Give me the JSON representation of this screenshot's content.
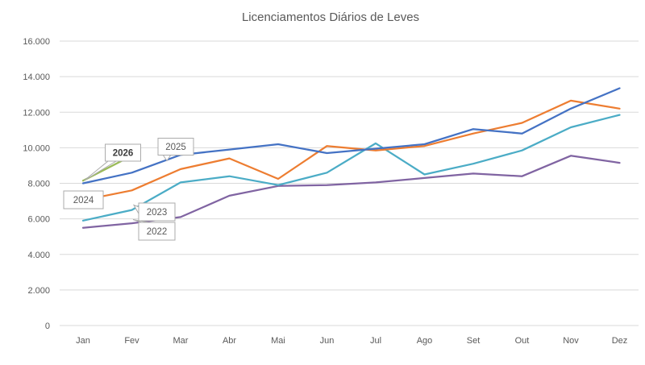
{
  "chart_data": {
    "type": "line",
    "title": "Licenciamentos Diários de Leves",
    "xlabel": "",
    "ylabel": "",
    "categories": [
      "Jan",
      "Fev",
      "Mar",
      "Abr",
      "Mai",
      "Jun",
      "Jul",
      "Ago",
      "Set",
      "Out",
      "Nov",
      "Dez"
    ],
    "ylim": [
      0,
      16000
    ],
    "y_tick_step": 2000,
    "y_tick_labels": [
      "0",
      "2.000",
      "4.000",
      "6.000",
      "8.000",
      "10.000",
      "12.000",
      "14.000",
      "16.000"
    ],
    "grid": true,
    "legend": "series-callout-labels",
    "series": [
      {
        "name": "2022",
        "color": "#8064A2",
        "label_bold": false,
        "values": [
          5500,
          5750,
          6100,
          7300,
          7850,
          7900,
          8050,
          8300,
          8550,
          8400,
          9550,
          9150
        ]
      },
      {
        "name": "2023",
        "color": "#4BACC6",
        "label_bold": false,
        "values": [
          5900,
          6500,
          8050,
          8400,
          7900,
          8600,
          10250,
          8500,
          9100,
          9850,
          11150,
          11850
        ]
      },
      {
        "name": "2024",
        "color": "#ED7D31",
        "label_bold": false,
        "values": [
          7050,
          7600,
          8800,
          9400,
          8250,
          10100,
          9850,
          10100,
          10800,
          11400,
          12650,
          12200
        ]
      },
      {
        "name": "2025",
        "color": "#4472C4",
        "label_bold": false,
        "values": [
          8000,
          8600,
          9600,
          9900,
          10200,
          9700,
          9950,
          10200,
          11050,
          10800,
          12200,
          13350
        ]
      },
      {
        "name": "2026",
        "color": "#9BBB59",
        "label_bold": true,
        "values": [
          8150,
          9550
        ]
      }
    ]
  },
  "styles": {
    "title_color": "#595959",
    "axis_text_color": "#595959",
    "gridline_color": "#D9D9D9",
    "callout_border_color": "#ABABAB",
    "callout_fill": "#FFFFFF",
    "callout_text_color": "#595959",
    "callout_bold_text_color": "#3B3B3B",
    "background": "#FFFFFF"
  }
}
